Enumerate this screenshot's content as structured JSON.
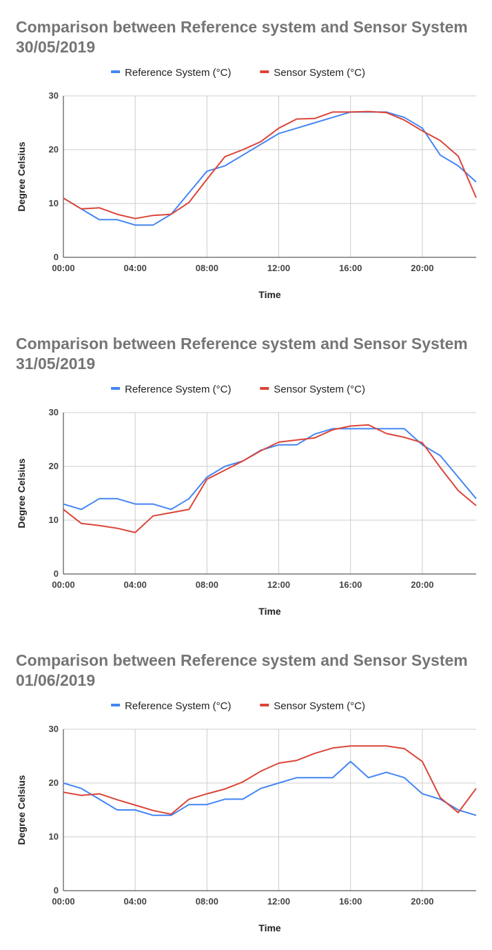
{
  "chart_data": [
    {
      "type": "line",
      "title_line1": "Comparison between  Reference system and Sensor System",
      "title_line2": "30/05/2019",
      "xlabel": "Time",
      "ylabel": "Degree Celsius",
      "ylim": [
        0,
        30
      ],
      "yticks": [
        "0",
        "10",
        "20",
        "30"
      ],
      "xlim": [
        0,
        23
      ],
      "xticks": [
        {
          "x": 0,
          "label": "00:00"
        },
        {
          "x": 4,
          "label": "04:00"
        },
        {
          "x": 8,
          "label": "08:00"
        },
        {
          "x": 12,
          "label": "12:00"
        },
        {
          "x": 16,
          "label": "16:00"
        },
        {
          "x": 20,
          "label": "20:00"
        }
      ],
      "grid": true,
      "legend_position": "top",
      "x": [
        0,
        1,
        2,
        3,
        4,
        5,
        6,
        7,
        8,
        9,
        10,
        11,
        12,
        13,
        14,
        15,
        16,
        17,
        18,
        19,
        20,
        21,
        22,
        23
      ],
      "series": [
        {
          "name": "Reference System (°C)",
          "color": "#4285f4",
          "values": [
            11,
            9,
            7,
            7,
            6,
            6,
            8,
            12,
            16,
            17,
            19,
            21,
            23,
            24,
            25,
            26,
            27,
            27,
            27,
            26,
            24,
            19,
            17,
            14
          ]
        },
        {
          "name": "Sensor System (°C)",
          "color": "#db4437",
          "values": [
            11,
            9,
            9.2,
            8,
            7.2,
            7.8,
            8,
            10.2,
            14.5,
            18.7,
            20,
            21.5,
            24,
            25.7,
            25.8,
            27,
            27,
            27.1,
            26.9,
            25.5,
            23.5,
            21.7,
            18.8,
            11.1
          ]
        }
      ]
    },
    {
      "type": "line",
      "title_line1": "Comparison between  Reference system and Sensor System",
      "title_line2": "31/05/2019",
      "xlabel": "Time",
      "ylabel": "Degree Celsius",
      "ylim": [
        0,
        30
      ],
      "yticks": [
        "0",
        "10",
        "20",
        "30"
      ],
      "xlim": [
        0,
        23
      ],
      "xticks": [
        {
          "x": 0,
          "label": "00:00"
        },
        {
          "x": 4,
          "label": "04:00"
        },
        {
          "x": 8,
          "label": "08:00"
        },
        {
          "x": 12,
          "label": "12:00"
        },
        {
          "x": 16,
          "label": "16:00"
        },
        {
          "x": 20,
          "label": "20:00"
        }
      ],
      "grid": true,
      "legend_position": "top",
      "x": [
        0,
        1,
        2,
        3,
        4,
        5,
        6,
        7,
        8,
        9,
        10,
        11,
        12,
        13,
        14,
        15,
        16,
        17,
        18,
        19,
        20,
        21,
        22,
        23
      ],
      "series": [
        {
          "name": "Reference System (°C)",
          "color": "#4285f4",
          "values": [
            13,
            12,
            14,
            14,
            13,
            13,
            12,
            14,
            18,
            20,
            21,
            23,
            24,
            24,
            26,
            27,
            27,
            27,
            27,
            27,
            24,
            22,
            18,
            14
          ]
        },
        {
          "name": "Sensor System (°C)",
          "color": "#db4437",
          "values": [
            12,
            9.4,
            9,
            8.5,
            7.7,
            10.8,
            11.4,
            12,
            17.6,
            19.3,
            21,
            22.9,
            24.5,
            24.9,
            25.3,
            26.8,
            27.5,
            27.7,
            26.1,
            25.4,
            24.4,
            19.8,
            15.5,
            12.7
          ]
        }
      ]
    },
    {
      "type": "line",
      "title_line1": "Comparison between  Reference system and  Sensor System",
      "title_line2": "01/06/2019",
      "xlabel": "Time",
      "ylabel": "Degree Celsius",
      "ylim": [
        0,
        30
      ],
      "yticks": [
        "0",
        "10",
        "20",
        "30"
      ],
      "xlim": [
        0,
        23
      ],
      "xticks": [
        {
          "x": 0,
          "label": "00:00"
        },
        {
          "x": 4,
          "label": "04:00"
        },
        {
          "x": 8,
          "label": "08:00"
        },
        {
          "x": 12,
          "label": "12:00"
        },
        {
          "x": 16,
          "label": "16:00"
        },
        {
          "x": 20,
          "label": "20:00"
        }
      ],
      "grid": true,
      "legend_position": "top",
      "x": [
        0,
        1,
        2,
        3,
        4,
        5,
        6,
        7,
        8,
        9,
        10,
        11,
        12,
        13,
        14,
        15,
        16,
        17,
        18,
        19,
        20,
        21,
        22,
        23
      ],
      "series": [
        {
          "name": "Reference System (°C)",
          "color": "#4285f4",
          "values": [
            20,
            19,
            17,
            15,
            15,
            14,
            14,
            16,
            16,
            17,
            17,
            19,
            20,
            21,
            21,
            21,
            24,
            21,
            22,
            21,
            18,
            17,
            15,
            14
          ]
        },
        {
          "name": "Sensor System (°C)",
          "color": "#db4437",
          "values": [
            18.3,
            17.7,
            18,
            16.9,
            15.9,
            14.9,
            14.2,
            17,
            18,
            18.9,
            20.2,
            22.2,
            23.7,
            24.2,
            25.5,
            26.5,
            26.9,
            26.9,
            26.9,
            26.4,
            24,
            17.3,
            14.5,
            19
          ]
        }
      ]
    }
  ]
}
